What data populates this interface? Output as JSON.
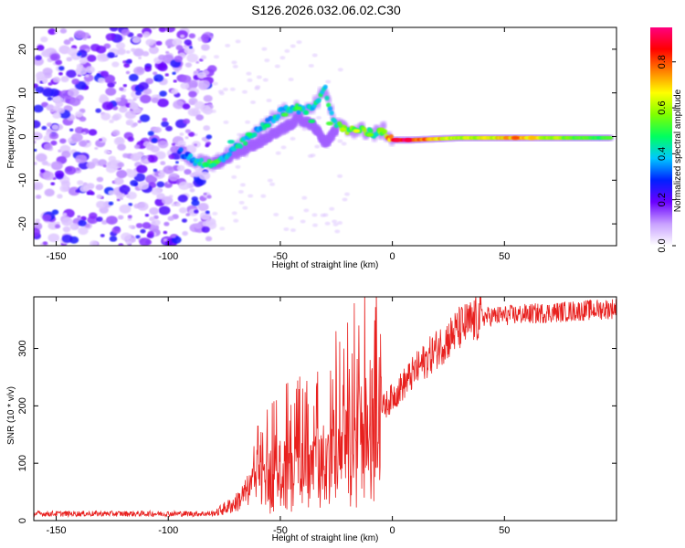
{
  "title": "S126.2026.032.06.02.C30",
  "chart_data": [
    {
      "type": "heatmap",
      "name": "spectrogram",
      "xlabel": "Height of straight line (km)",
      "ylabel": "Frequency (Hz)",
      "xlim": [
        -160,
        100
      ],
      "ylim": [
        -25,
        25
      ],
      "xticks": [
        -150,
        -100,
        -50,
        0,
        50
      ],
      "yticks": [
        -20,
        -10,
        0,
        10,
        20
      ],
      "colorbar": {
        "label": "Normalized spectral amplitude",
        "range": [
          0,
          0.95
        ],
        "ticks": [
          "0.0",
          "0.2",
          "0.4",
          "0.6",
          "0.8"
        ],
        "colors": [
          "#ffffff",
          "#c8a0ff",
          "#6a00ff",
          "#0020ff",
          "#00c8ff",
          "#00ff60",
          "#80ff00",
          "#ffff00",
          "#ff8000",
          "#ff0000",
          "#ff0080"
        ]
      },
      "noise_region_x": [
        -160,
        -80
      ],
      "signal_path": [
        {
          "x": -95,
          "f": -3.5,
          "a": 0.15
        },
        {
          "x": -88,
          "f": -5.5,
          "a": 0.25
        },
        {
          "x": -80,
          "f": -6.5,
          "a": 0.45
        },
        {
          "x": -74,
          "f": -4.5,
          "a": 0.3
        },
        {
          "x": -68,
          "f": -2.0,
          "a": 0.35
        },
        {
          "x": -62,
          "f": 0.5,
          "a": 0.3
        },
        {
          "x": -56,
          "f": 3.0,
          "a": 0.3
        },
        {
          "x": -50,
          "f": 5.5,
          "a": 0.3
        },
        {
          "x": -44,
          "f": 6.5,
          "a": 0.35
        },
        {
          "x": -38,
          "f": 6.0,
          "a": 0.3
        },
        {
          "x": -33,
          "f": 8.5,
          "a": 0.35
        },
        {
          "x": -30,
          "f": 11.0,
          "a": 0.3
        },
        {
          "x": -26,
          "f": 3.0,
          "a": 0.4
        },
        {
          "x": -20,
          "f": 1.5,
          "a": 0.5
        },
        {
          "x": -14,
          "f": 1.5,
          "a": 0.55
        },
        {
          "x": -8,
          "f": 0.5,
          "a": 0.45
        },
        {
          "x": -4,
          "f": 1.5,
          "a": 0.5
        },
        {
          "x": 0,
          "f": -0.8,
          "a": 0.85
        },
        {
          "x": 8,
          "f": -0.8,
          "a": 0.9
        },
        {
          "x": 30,
          "f": -0.3,
          "a": 0.5
        },
        {
          "x": 55,
          "f": -0.3,
          "a": 0.7
        },
        {
          "x": 80,
          "f": -0.3,
          "a": 0.45
        },
        {
          "x": 98,
          "f": -0.3,
          "a": 0.4
        }
      ],
      "lower_branch": [
        {
          "x": -80,
          "f": -6.5
        },
        {
          "x": -70,
          "f": -4.0
        },
        {
          "x": -62,
          "f": -2.0
        },
        {
          "x": -55,
          "f": 0.0
        },
        {
          "x": -48,
          "f": 2.0
        },
        {
          "x": -42,
          "f": 4.0
        },
        {
          "x": -35,
          "f": 2.5
        },
        {
          "x": -30,
          "f": -1.5
        },
        {
          "x": -25,
          "f": 1.5
        }
      ]
    },
    {
      "type": "line",
      "name": "snr",
      "xlabel": "Height of straight line (km)",
      "ylabel": "SNR (10 * v/v)",
      "xlim": [
        -160,
        100
      ],
      "ylim": [
        0,
        390
      ],
      "xticks": [
        -150,
        -100,
        -50,
        0,
        50
      ],
      "yticks": [
        0,
        100,
        200,
        300
      ],
      "color": "#e8201e",
      "trend": [
        {
          "x": -160,
          "y": 12
        },
        {
          "x": -80,
          "y": 12
        },
        {
          "x": -70,
          "y": 30
        },
        {
          "x": -60,
          "y": 70
        },
        {
          "x": -50,
          "y": 90
        },
        {
          "x": -40,
          "y": 100
        },
        {
          "x": -30,
          "y": 120
        },
        {
          "x": -20,
          "y": 140
        },
        {
          "x": -10,
          "y": 170
        },
        {
          "x": 0,
          "y": 215
        },
        {
          "x": 10,
          "y": 260
        },
        {
          "x": 20,
          "y": 300
        },
        {
          "x": 30,
          "y": 335
        },
        {
          "x": 40,
          "y": 355
        },
        {
          "x": 60,
          "y": 360
        },
        {
          "x": 80,
          "y": 365
        },
        {
          "x": 100,
          "y": 370
        }
      ],
      "spikes": [
        {
          "x": -60,
          "y": 165
        },
        {
          "x": -40,
          "y": 230
        },
        {
          "x": -35,
          "y": 200
        },
        {
          "x": -25,
          "y": 260
        },
        {
          "x": -20,
          "y": 345
        },
        {
          "x": -15,
          "y": 340
        },
        {
          "x": -10,
          "y": 280
        },
        {
          "x": -5,
          "y": 250
        }
      ]
    }
  ]
}
